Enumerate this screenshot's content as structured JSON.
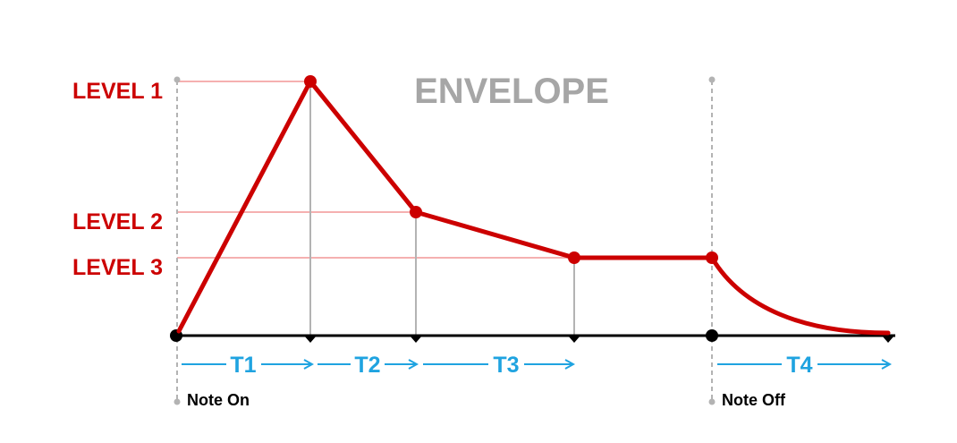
{
  "title": "ENVELOPE",
  "levels": {
    "level1": "LEVEL 1",
    "level2": "LEVEL 2",
    "level3": "LEVEL 3"
  },
  "segments": {
    "t1": "T1",
    "t2": "T2",
    "t3": "T3",
    "t4": "T4"
  },
  "events": {
    "note_on": "Note On",
    "note_off": "Note Off"
  },
  "colors": {
    "envelope": "#cc0000",
    "level_guide": "#f5b0b0",
    "time_arrow": "#1fa3e0",
    "title": "#a6a6a6",
    "axis": "#000000",
    "vertical_guide": "#b3b3b3"
  }
}
